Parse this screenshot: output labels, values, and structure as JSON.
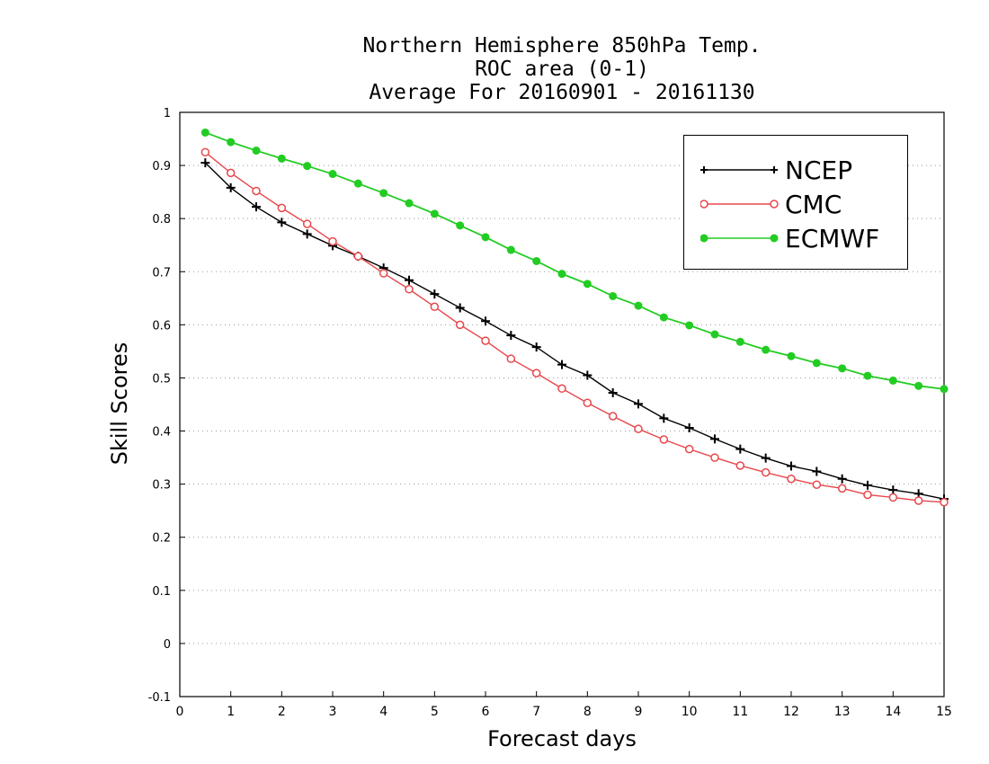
{
  "chart_data": {
    "type": "line",
    "title": [
      "Northern Hemisphere 850hPa Temp.",
      "ROC area (0-1)",
      "Average For 20160901 - 20161130"
    ],
    "xlabel": "Forecast days",
    "ylabel": "Skill Scores",
    "xlim": [
      0,
      15
    ],
    "ylim": [
      -0.1,
      1
    ],
    "xticks": [
      "0",
      "1",
      "2",
      "3",
      "4",
      "5",
      "6",
      "7",
      "8",
      "9",
      "10",
      "11",
      "12",
      "13",
      "14",
      "15"
    ],
    "yticks": [
      "-0.1",
      "0",
      "0.1",
      "0.2",
      "0.3",
      "0.4",
      "0.5",
      "0.6",
      "0.7",
      "0.8",
      "0.9",
      "1"
    ],
    "grid": "horizontal dotted",
    "legend_position": "top-right",
    "x": [
      0.5,
      1,
      1.5,
      2,
      2.5,
      3,
      3.5,
      4,
      4.5,
      5,
      5.5,
      6,
      6.5,
      7,
      7.5,
      8,
      8.5,
      9,
      9.5,
      10,
      10.5,
      11,
      11.5,
      12,
      12.5,
      13,
      13.5,
      14,
      14.5,
      15
    ],
    "series": [
      {
        "name": "NCEP",
        "color": "#000000",
        "marker": "plus",
        "values": [
          0.905,
          0.858,
          0.822,
          0.793,
          0.771,
          0.749,
          0.729,
          0.707,
          0.684,
          0.658,
          0.632,
          0.607,
          0.58,
          0.558,
          0.525,
          0.505,
          0.472,
          0.451,
          0.424,
          0.406,
          0.385,
          0.366,
          0.349,
          0.334,
          0.324,
          0.31,
          0.298,
          0.289,
          0.282,
          0.272
        ]
      },
      {
        "name": "CMC",
        "color": "#e8474c",
        "marker": "open-circle",
        "values": [
          0.925,
          0.886,
          0.852,
          0.82,
          0.79,
          0.757,
          0.729,
          0.697,
          0.667,
          0.634,
          0.6,
          0.57,
          0.536,
          0.509,
          0.48,
          0.453,
          0.428,
          0.404,
          0.384,
          0.366,
          0.35,
          0.335,
          0.322,
          0.31,
          0.299,
          0.292,
          0.28,
          0.275,
          0.269,
          0.266
        ]
      },
      {
        "name": "ECMWF",
        "color": "#22cc22",
        "marker": "filled-circle",
        "values": [
          0.962,
          0.944,
          0.928,
          0.913,
          0.899,
          0.884,
          0.866,
          0.848,
          0.829,
          0.809,
          0.787,
          0.765,
          0.741,
          0.72,
          0.696,
          0.677,
          0.654,
          0.636,
          0.614,
          0.599,
          0.582,
          0.568,
          0.553,
          0.541,
          0.528,
          0.518,
          0.504,
          0.495,
          0.485,
          0.479
        ]
      }
    ]
  }
}
